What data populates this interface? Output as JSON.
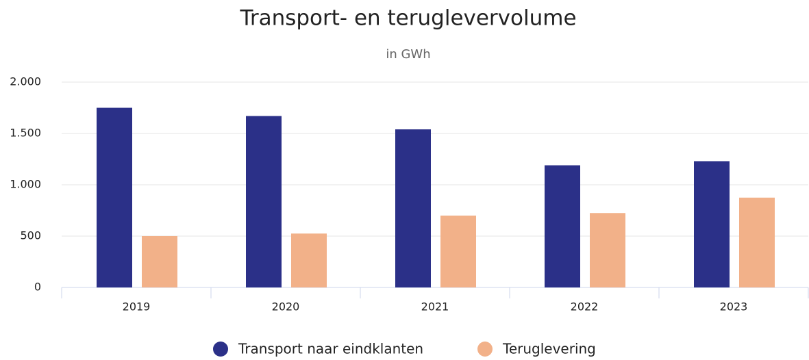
{
  "chart_data": {
    "type": "bar",
    "title": "Transport- en teruglevervolume",
    "subtitle": "in GWh",
    "categories": [
      "2019",
      "2020",
      "2021",
      "2022",
      "2023"
    ],
    "series": [
      {
        "name": "Transport naar eindklanten",
        "color": "#2b3088",
        "values": [
          1750,
          1670,
          1540,
          1190,
          1230
        ]
      },
      {
        "name": "Teruglevering",
        "color": "#f2b189",
        "values": [
          500,
          525,
          700,
          725,
          875
        ]
      }
    ],
    "ylim": [
      0,
      2000
    ],
    "yticks": [
      0,
      500,
      {
        "value": 1000,
        "label": "1.000"
      },
      {
        "value": 1500,
        "label": "1.500"
      },
      {
        "value": 2000,
        "label": "2.000"
      }
    ],
    "grid": true,
    "legend": "bottom"
  }
}
